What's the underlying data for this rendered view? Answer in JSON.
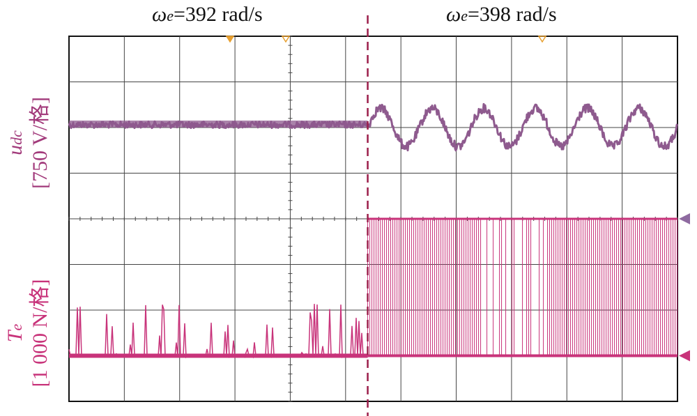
{
  "header": {
    "left_label": {
      "symbol": "ω",
      "sub": "e",
      "text": "=392 rad/s"
    },
    "right_label": {
      "symbol": "ω",
      "sub": "e",
      "text": "=398 rad/s"
    }
  },
  "axes": {
    "udc": {
      "symbol": "u",
      "sub": "dc",
      "scale": "[750 V/格]"
    },
    "te": {
      "symbol": "T",
      "sub": "e",
      "scale": "[1 000 N/格]"
    }
  },
  "chart_data": {
    "type": "line",
    "title": "",
    "xlabel": "",
    "ylabel": "",
    "grid": true,
    "divisions": {
      "x": 11,
      "y": 7
    },
    "switch_time_div": 5.4,
    "series": [
      {
        "name": "u_dc",
        "color": "#8e5a8e",
        "unit_per_div": "750 V/格",
        "segments": [
          {
            "from_div": 0,
            "to_div": 5.4,
            "kind": "flat-noise",
            "level_div": 0,
            "noise_div": 0.12
          },
          {
            "from_div": 5.4,
            "to_div": 11,
            "kind": "sine",
            "amplitude_div": 0.42,
            "periods": 6,
            "noise_div": 0.12
          }
        ]
      },
      {
        "name": "T_e",
        "color": "#c8337a",
        "unit_per_div": "1 000 N/格",
        "segments": [
          {
            "from_div": 0,
            "to_div": 5.4,
            "kind": "spiky-noise",
            "base_div": 0,
            "max_spike_div": 1.2
          },
          {
            "from_div": 5.4,
            "to_div": 11,
            "kind": "saturated-switching",
            "low_div": 0,
            "high_div": 3
          }
        ]
      }
    ],
    "markers": {
      "right_arrows": [
        "udc-ground",
        "te-ground"
      ],
      "top_markers": [
        "trigger",
        "ref1",
        "ref2"
      ]
    }
  },
  "colors": {
    "udc": "#8e5a8e",
    "te": "#c8337a",
    "divider": "#9b1d4a",
    "grid": "#444444",
    "udc_label": "#a23a7b",
    "te_label": "#c8337a",
    "marker_orange": "#e8a030",
    "arrow_udc": "#8e6aa0",
    "arrow_te": "#c8337a"
  }
}
